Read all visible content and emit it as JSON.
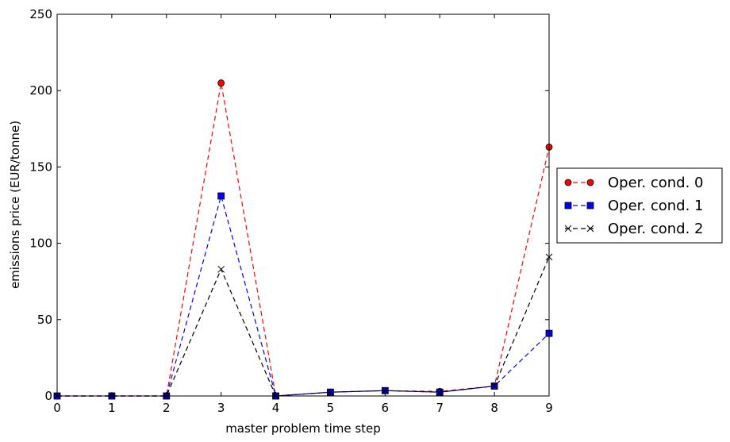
{
  "chart_data": {
    "type": "line",
    "title": "",
    "xlabel": "master problem time step",
    "ylabel": "emissions price (EUR/tonne)",
    "x": [
      0,
      1,
      2,
      3,
      4,
      5,
      6,
      7,
      8,
      9
    ],
    "xlim": [
      0,
      9
    ],
    "ylim": [
      0,
      250
    ],
    "xticks": [
      "0",
      "1",
      "2",
      "3",
      "4",
      "5",
      "6",
      "7",
      "8",
      "9"
    ],
    "yticks": [
      "0",
      "50",
      "100",
      "150",
      "200",
      "250"
    ],
    "grid": false,
    "legend_position": "outside-right",
    "series": [
      {
        "name": "Oper. cond. 0",
        "color": "#ff0000",
        "marker": "circle",
        "values": [
          0,
          0,
          0,
          205,
          0,
          2.5,
          3.5,
          3,
          6.5,
          163
        ]
      },
      {
        "name": "Oper. cond. 1",
        "color": "#0000ff",
        "marker": "square",
        "values": [
          0,
          0,
          0,
          131,
          0,
          2.5,
          3.5,
          2.5,
          6.5,
          41
        ]
      },
      {
        "name": "Oper. cond. 2",
        "color": "#000000",
        "marker": "x",
        "values": [
          0,
          0,
          0,
          83,
          0,
          2.5,
          3.5,
          2.5,
          6.5,
          91
        ]
      }
    ]
  }
}
